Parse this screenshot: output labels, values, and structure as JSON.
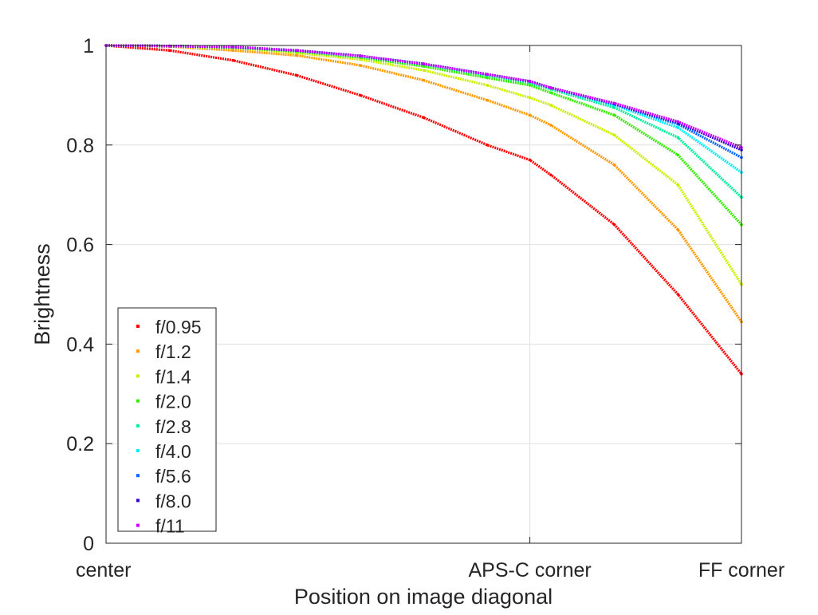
{
  "chart_data": {
    "type": "scatter",
    "title": "",
    "xlabel": "Position on image diagonal",
    "ylabel": "Brightness",
    "xlim": [
      0,
      1
    ],
    "ylim": [
      0,
      1
    ],
    "grid": true,
    "legend_position": "bottom-left",
    "x_ticks": [
      {
        "value": 0,
        "label": "center"
      },
      {
        "value": 0.667,
        "label": "APS-C corner"
      },
      {
        "value": 1,
        "label": "FF corner"
      }
    ],
    "y_ticks": [
      {
        "value": 0,
        "label": "0"
      },
      {
        "value": 0.2,
        "label": "0.2"
      },
      {
        "value": 0.4,
        "label": "0.4"
      },
      {
        "value": 0.6,
        "label": "0.6"
      },
      {
        "value": 0.8,
        "label": "0.8"
      },
      {
        "value": 1,
        "label": "1"
      }
    ],
    "series": [
      {
        "name": "f/0.95",
        "color": "#ff0000",
        "x": [
          0,
          0.1,
          0.2,
          0.3,
          0.4,
          0.5,
          0.6,
          0.667,
          0.7,
          0.8,
          0.9,
          1.0
        ],
        "y": [
          1.0,
          0.99,
          0.97,
          0.94,
          0.9,
          0.855,
          0.8,
          0.77,
          0.74,
          0.64,
          0.5,
          0.34
        ]
      },
      {
        "name": "f/1.2",
        "color": "#ff9900",
        "x": [
          0,
          0.1,
          0.2,
          0.3,
          0.4,
          0.5,
          0.6,
          0.667,
          0.7,
          0.8,
          0.9,
          1.0
        ],
        "y": [
          1.0,
          0.998,
          0.99,
          0.98,
          0.96,
          0.93,
          0.89,
          0.86,
          0.84,
          0.76,
          0.63,
          0.445
        ]
      },
      {
        "name": "f/1.4",
        "color": "#ccee00",
        "x": [
          0,
          0.1,
          0.2,
          0.3,
          0.4,
          0.5,
          0.6,
          0.667,
          0.7,
          0.8,
          0.9,
          1.0
        ],
        "y": [
          1.0,
          0.999,
          0.995,
          0.985,
          0.972,
          0.95,
          0.92,
          0.895,
          0.88,
          0.82,
          0.72,
          0.52
        ]
      },
      {
        "name": "f/2.0",
        "color": "#33ee00",
        "x": [
          0,
          0.1,
          0.2,
          0.3,
          0.4,
          0.5,
          0.6,
          0.667,
          0.7,
          0.8,
          0.9,
          1.0
        ],
        "y": [
          1.0,
          0.999,
          0.996,
          0.988,
          0.976,
          0.958,
          0.935,
          0.92,
          0.905,
          0.86,
          0.78,
          0.64
        ]
      },
      {
        "name": "f/2.8",
        "color": "#00ee99",
        "x": [
          0,
          0.1,
          0.2,
          0.3,
          0.4,
          0.5,
          0.6,
          0.667,
          0.7,
          0.8,
          0.9,
          1.0
        ],
        "y": [
          1.0,
          0.999,
          0.996,
          0.99,
          0.978,
          0.962,
          0.94,
          0.925,
          0.912,
          0.875,
          0.815,
          0.695
        ]
      },
      {
        "name": "f/4.0",
        "color": "#00eeff",
        "x": [
          0,
          0.1,
          0.2,
          0.3,
          0.4,
          0.5,
          0.6,
          0.667,
          0.7,
          0.8,
          0.9,
          1.0
        ],
        "y": [
          1.0,
          0.999,
          0.997,
          0.99,
          0.979,
          0.963,
          0.942,
          0.928,
          0.915,
          0.88,
          0.835,
          0.745
        ]
      },
      {
        "name": "f/5.6",
        "color": "#0066ff",
        "x": [
          0,
          0.1,
          0.2,
          0.3,
          0.4,
          0.5,
          0.6,
          0.667,
          0.7,
          0.8,
          0.9,
          1.0
        ],
        "y": [
          1.0,
          0.999,
          0.997,
          0.99,
          0.979,
          0.963,
          0.942,
          0.928,
          0.915,
          0.882,
          0.842,
          0.775
        ]
      },
      {
        "name": "f/8.0",
        "color": "#3300cc",
        "x": [
          0,
          0.1,
          0.2,
          0.3,
          0.4,
          0.5,
          0.6,
          0.667,
          0.7,
          0.8,
          0.9,
          1.0
        ],
        "y": [
          1.0,
          0.999,
          0.997,
          0.99,
          0.979,
          0.963,
          0.942,
          0.928,
          0.915,
          0.883,
          0.845,
          0.79
        ]
      },
      {
        "name": "f/11",
        "color": "#cc00ff",
        "x": [
          0,
          0.1,
          0.2,
          0.3,
          0.4,
          0.5,
          0.6,
          0.667,
          0.7,
          0.8,
          0.9,
          1.0
        ],
        "y": [
          1.0,
          0.999,
          0.997,
          0.99,
          0.979,
          0.963,
          0.942,
          0.928,
          0.915,
          0.884,
          0.847,
          0.795
        ]
      }
    ]
  }
}
